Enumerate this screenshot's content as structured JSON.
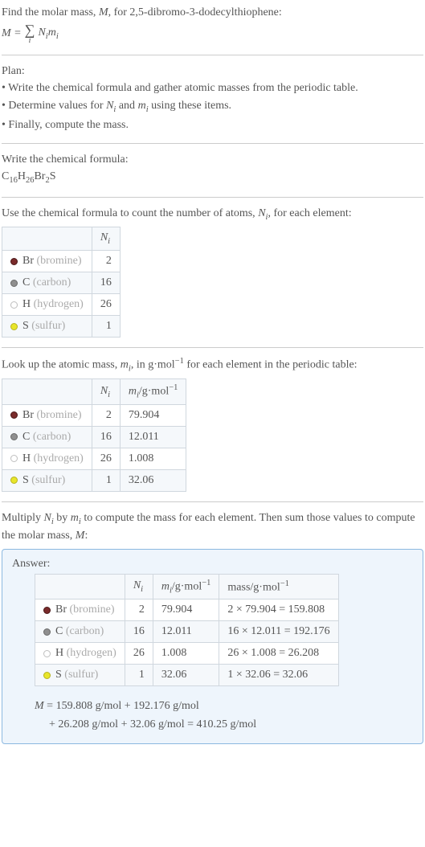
{
  "intro": {
    "line1_a": "Find the molar mass, ",
    "line1_M": "M",
    "line1_b": ", for 2,5-dibromo-3-dodecylthiophene:",
    "formula_lhs": "M = ",
    "formula_sum_idx": "i",
    "formula_rhs_N": "N",
    "formula_rhs_i": "i",
    "formula_rhs_m": "m",
    "formula_rhs_i2": "i"
  },
  "plan": {
    "title": "Plan:",
    "b1": "• Write the chemical formula and gather atomic masses from the periodic table.",
    "b2_a": "• Determine values for ",
    "b2_N": "N",
    "b2_i": "i",
    "b2_b": " and ",
    "b2_m": "m",
    "b2_i2": "i",
    "b2_c": " using these items.",
    "b3": "• Finally, compute the mass."
  },
  "chem": {
    "title": "Write the chemical formula:",
    "parts": [
      "C",
      "16",
      "H",
      "26",
      "Br",
      "2",
      "S"
    ]
  },
  "count": {
    "intro_a": "Use the chemical formula to count the number of atoms, ",
    "intro_N": "N",
    "intro_i": "i",
    "intro_b": ", for each element:",
    "header_N": "N",
    "header_i": "i",
    "rows": [
      {
        "sym": "Br",
        "name": "(bromine)",
        "n": "2",
        "bullet_fill": "#7a2b2b",
        "bullet_border": "#4a1616"
      },
      {
        "sym": "C",
        "name": "(carbon)",
        "n": "16",
        "bullet_fill": "#8f8f8f",
        "bullet_border": "#6a6a6a"
      },
      {
        "sym": "H",
        "name": "(hydrogen)",
        "n": "26",
        "bullet_fill": "#ffffff",
        "bullet_border": "#bfbfbf"
      },
      {
        "sym": "S",
        "name": "(sulfur)",
        "n": "1",
        "bullet_fill": "#e8e52a",
        "bullet_border": "#b6b31d"
      }
    ]
  },
  "mass": {
    "intro_a": "Look up the atomic mass, ",
    "intro_m": "m",
    "intro_i": "i",
    "intro_b": ", in g·mol",
    "intro_exp": "−1",
    "intro_c": " for each element in the periodic table:",
    "hdr_N": "N",
    "hdr_i": "i",
    "hdr_m": "m",
    "hdr_i2": "i",
    "hdr_unit_a": "/g·mol",
    "hdr_unit_exp": "−1",
    "rows": [
      {
        "sym": "Br",
        "name": "(bromine)",
        "n": "2",
        "m": "79.904",
        "bullet_fill": "#7a2b2b",
        "bullet_border": "#4a1616"
      },
      {
        "sym": "C",
        "name": "(carbon)",
        "n": "16",
        "m": "12.011",
        "bullet_fill": "#8f8f8f",
        "bullet_border": "#6a6a6a"
      },
      {
        "sym": "H",
        "name": "(hydrogen)",
        "n": "26",
        "m": "1.008",
        "bullet_fill": "#ffffff",
        "bullet_border": "#bfbfbf"
      },
      {
        "sym": "S",
        "name": "(sulfur)",
        "n": "1",
        "m": "32.06",
        "bullet_fill": "#e8e52a",
        "bullet_border": "#b6b31d"
      }
    ]
  },
  "mult": {
    "a": "Multiply ",
    "N": "N",
    "i": "i",
    "b": " by ",
    "m": "m",
    "i2": "i",
    "c": " to compute the mass for each element. Then sum those values to compute the molar mass, ",
    "M": "M",
    "d": ":"
  },
  "answer": {
    "title": "Answer:",
    "hdr_N": "N",
    "hdr_i": "i",
    "hdr_m": "m",
    "hdr_i2": "i",
    "hdr_munit_a": "/g·mol",
    "hdr_munit_exp": "−1",
    "hdr_mass_a": "mass/g·mol",
    "hdr_mass_exp": "−1",
    "rows": [
      {
        "sym": "Br",
        "name": "(bromine)",
        "n": "2",
        "m": "79.904",
        "calc": "2 × 79.904 = 159.808",
        "bullet_fill": "#7a2b2b",
        "bullet_border": "#4a1616"
      },
      {
        "sym": "C",
        "name": "(carbon)",
        "n": "16",
        "m": "12.011",
        "calc": "16 × 12.011 = 192.176",
        "bullet_fill": "#8f8f8f",
        "bullet_border": "#6a6a6a"
      },
      {
        "sym": "H",
        "name": "(hydrogen)",
        "n": "26",
        "m": "1.008",
        "calc": "26 × 1.008 = 26.208",
        "bullet_fill": "#ffffff",
        "bullet_border": "#bfbfbf"
      },
      {
        "sym": "S",
        "name": "(sulfur)",
        "n": "1",
        "m": "32.06",
        "calc": "1 × 32.06 = 32.06",
        "bullet_fill": "#e8e52a",
        "bullet_border": "#b6b31d"
      }
    ],
    "eq_l1_a": "M",
    "eq_l1_b": " = 159.808 g/mol + 192.176 g/mol",
    "eq_l2": "+ 26.208 g/mol + 32.06 g/mol = 410.25 g/mol"
  }
}
